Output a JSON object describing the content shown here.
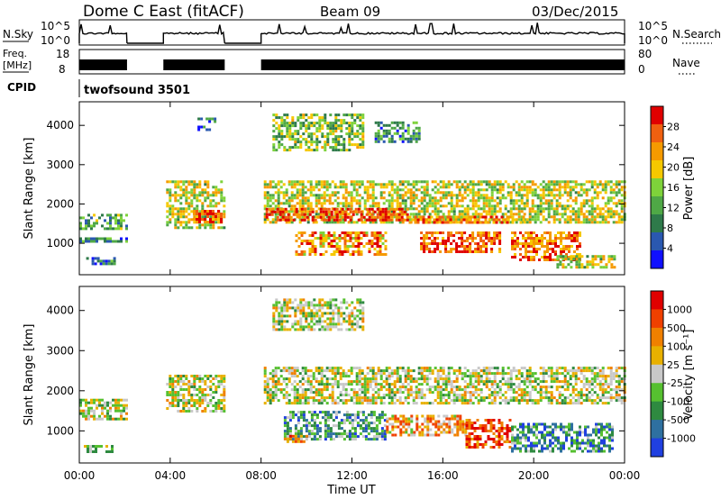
{
  "header": {
    "site": "Dome C East (fitACF)",
    "beam": "Beam 09",
    "date": "03/Dec/2015"
  },
  "summary": {
    "nsky_label": "N.Sky",
    "nsky_ticks": [
      "10^5",
      "10^0"
    ],
    "nsearch_label": "N.Search",
    "nsearch_ticks": [
      "10^5",
      "10^0"
    ],
    "freq_label": [
      "Freq.",
      "[MHz]"
    ],
    "freq_ticks": [
      "18",
      "8"
    ],
    "nave_label": "Nave",
    "nave_ticks": [
      "80",
      "0"
    ],
    "cpid_label": "CPID",
    "cpid_value": "twofsound 3501"
  },
  "chart_data": [
    {
      "type": "heatmap",
      "name": "power",
      "ylabel": "Slant Range [km]",
      "xlabel": "Time UT",
      "xlim": [
        0,
        24
      ],
      "ylim": [
        200,
        4600
      ],
      "x_ticks": [
        "00:00",
        "04:00",
        "08:00",
        "12:00",
        "16:00",
        "20:00",
        "00:00"
      ],
      "y_ticks": [
        "1000",
        "2000",
        "3000",
        "4000"
      ],
      "colorbar_label": "Power [dB]",
      "colorbar_ticks": [
        "28",
        "24",
        "20",
        "16",
        "12",
        "8",
        "4"
      ],
      "colors": [
        "#1010ff",
        "#2a58b0",
        "#2e7a4a",
        "#4fa846",
        "#7ed23a",
        "#f5c800",
        "#f59a00",
        "#f06010",
        "#e00000"
      ],
      "data_gaps_ut": [
        [
          2.1,
          3.7
        ],
        [
          6.4,
          8.0
        ]
      ],
      "features": [
        {
          "t0": 0.0,
          "t1": 2.1,
          "r0": 1400,
          "r1": 1750,
          "level": 0.35
        },
        {
          "t0": 0.0,
          "t1": 2.1,
          "r0": 1050,
          "r1": 1150,
          "level": 0.3
        },
        {
          "t0": 0.3,
          "t1": 1.6,
          "r0": 450,
          "r1": 650,
          "level": 0.3
        },
        {
          "t0": 3.7,
          "t1": 6.4,
          "r0": 1400,
          "r1": 2600,
          "level": 0.55
        },
        {
          "t0": 5.0,
          "t1": 6.3,
          "r0": 1550,
          "r1": 1850,
          "level": 0.85
        },
        {
          "t0": 5.2,
          "t1": 6.0,
          "r0": 3900,
          "r1": 4200,
          "level": 0.25
        },
        {
          "t0": 8.0,
          "t1": 24.0,
          "r0": 1500,
          "r1": 2600,
          "level": 0.55
        },
        {
          "t0": 8.2,
          "t1": 14.5,
          "r0": 1600,
          "r1": 1900,
          "level": 0.9
        },
        {
          "t0": 14.5,
          "t1": 19.5,
          "r0": 1500,
          "r1": 1700,
          "level": 0.75
        },
        {
          "t0": 9.5,
          "t1": 13.5,
          "r0": 700,
          "r1": 1300,
          "level": 0.75
        },
        {
          "t0": 15.0,
          "t1": 18.5,
          "r0": 800,
          "r1": 1300,
          "level": 0.85
        },
        {
          "t0": 19.0,
          "t1": 22.0,
          "r0": 600,
          "r1": 1300,
          "level": 0.8
        },
        {
          "t0": 21.0,
          "t1": 23.5,
          "r0": 400,
          "r1": 700,
          "level": 0.55
        },
        {
          "t0": 8.5,
          "t1": 12.5,
          "r0": 3400,
          "r1": 4300,
          "level": 0.45
        },
        {
          "t0": 13.0,
          "t1": 15.0,
          "r0": 3600,
          "r1": 4100,
          "level": 0.3
        }
      ]
    },
    {
      "type": "heatmap",
      "name": "velocity",
      "ylabel": "Slant Range [km]",
      "xlabel": "Time UT",
      "xlim": [
        0,
        24
      ],
      "ylim": [
        200,
        4600
      ],
      "x_ticks": [
        "00:00",
        "04:00",
        "08:00",
        "12:00",
        "16:00",
        "20:00",
        "00:00"
      ],
      "y_ticks": [
        "1000",
        "2000",
        "3000",
        "4000"
      ],
      "colorbar_label": "Velocity [m s⁻¹]",
      "colorbar_ticks": [
        "1000",
        "500",
        "100",
        "25",
        "-25",
        "-100",
        "-500",
        "-1000"
      ],
      "colors": [
        "#2040e0",
        "#2e70a0",
        "#2e8a40",
        "#56c030",
        "#c8c8c8",
        "#e8b000",
        "#f08000",
        "#f04000",
        "#e00000"
      ],
      "data_gaps_ut": [
        [
          2.1,
          3.7
        ],
        [
          6.4,
          8.0
        ]
      ],
      "features": [
        {
          "t0": 0.0,
          "t1": 2.1,
          "r0": 1300,
          "r1": 1800,
          "level": 0.5
        },
        {
          "t0": 0.2,
          "t1": 1.5,
          "r0": 450,
          "r1": 650,
          "level": 0.4
        },
        {
          "t0": 3.7,
          "t1": 6.4,
          "r0": 1500,
          "r1": 2400,
          "level": 0.5
        },
        {
          "t0": 8.0,
          "t1": 24.0,
          "r0": 1700,
          "r1": 2600,
          "level": 0.5
        },
        {
          "t0": 9.0,
          "t1": 13.5,
          "r0": 800,
          "r1": 1500,
          "level": 0.3
        },
        {
          "t0": 13.5,
          "t1": 17.0,
          "r0": 900,
          "r1": 1400,
          "level": 0.65
        },
        {
          "t0": 17.0,
          "t1": 19.0,
          "r0": 600,
          "r1": 1300,
          "level": 0.85
        },
        {
          "t0": 19.0,
          "t1": 23.5,
          "r0": 500,
          "r1": 1200,
          "level": 0.25
        },
        {
          "t0": 9.0,
          "t1": 10.0,
          "r0": 700,
          "r1": 900,
          "level": 0.75
        },
        {
          "t0": 8.5,
          "t1": 12.5,
          "r0": 3500,
          "r1": 4300,
          "level": 0.5
        }
      ]
    }
  ]
}
